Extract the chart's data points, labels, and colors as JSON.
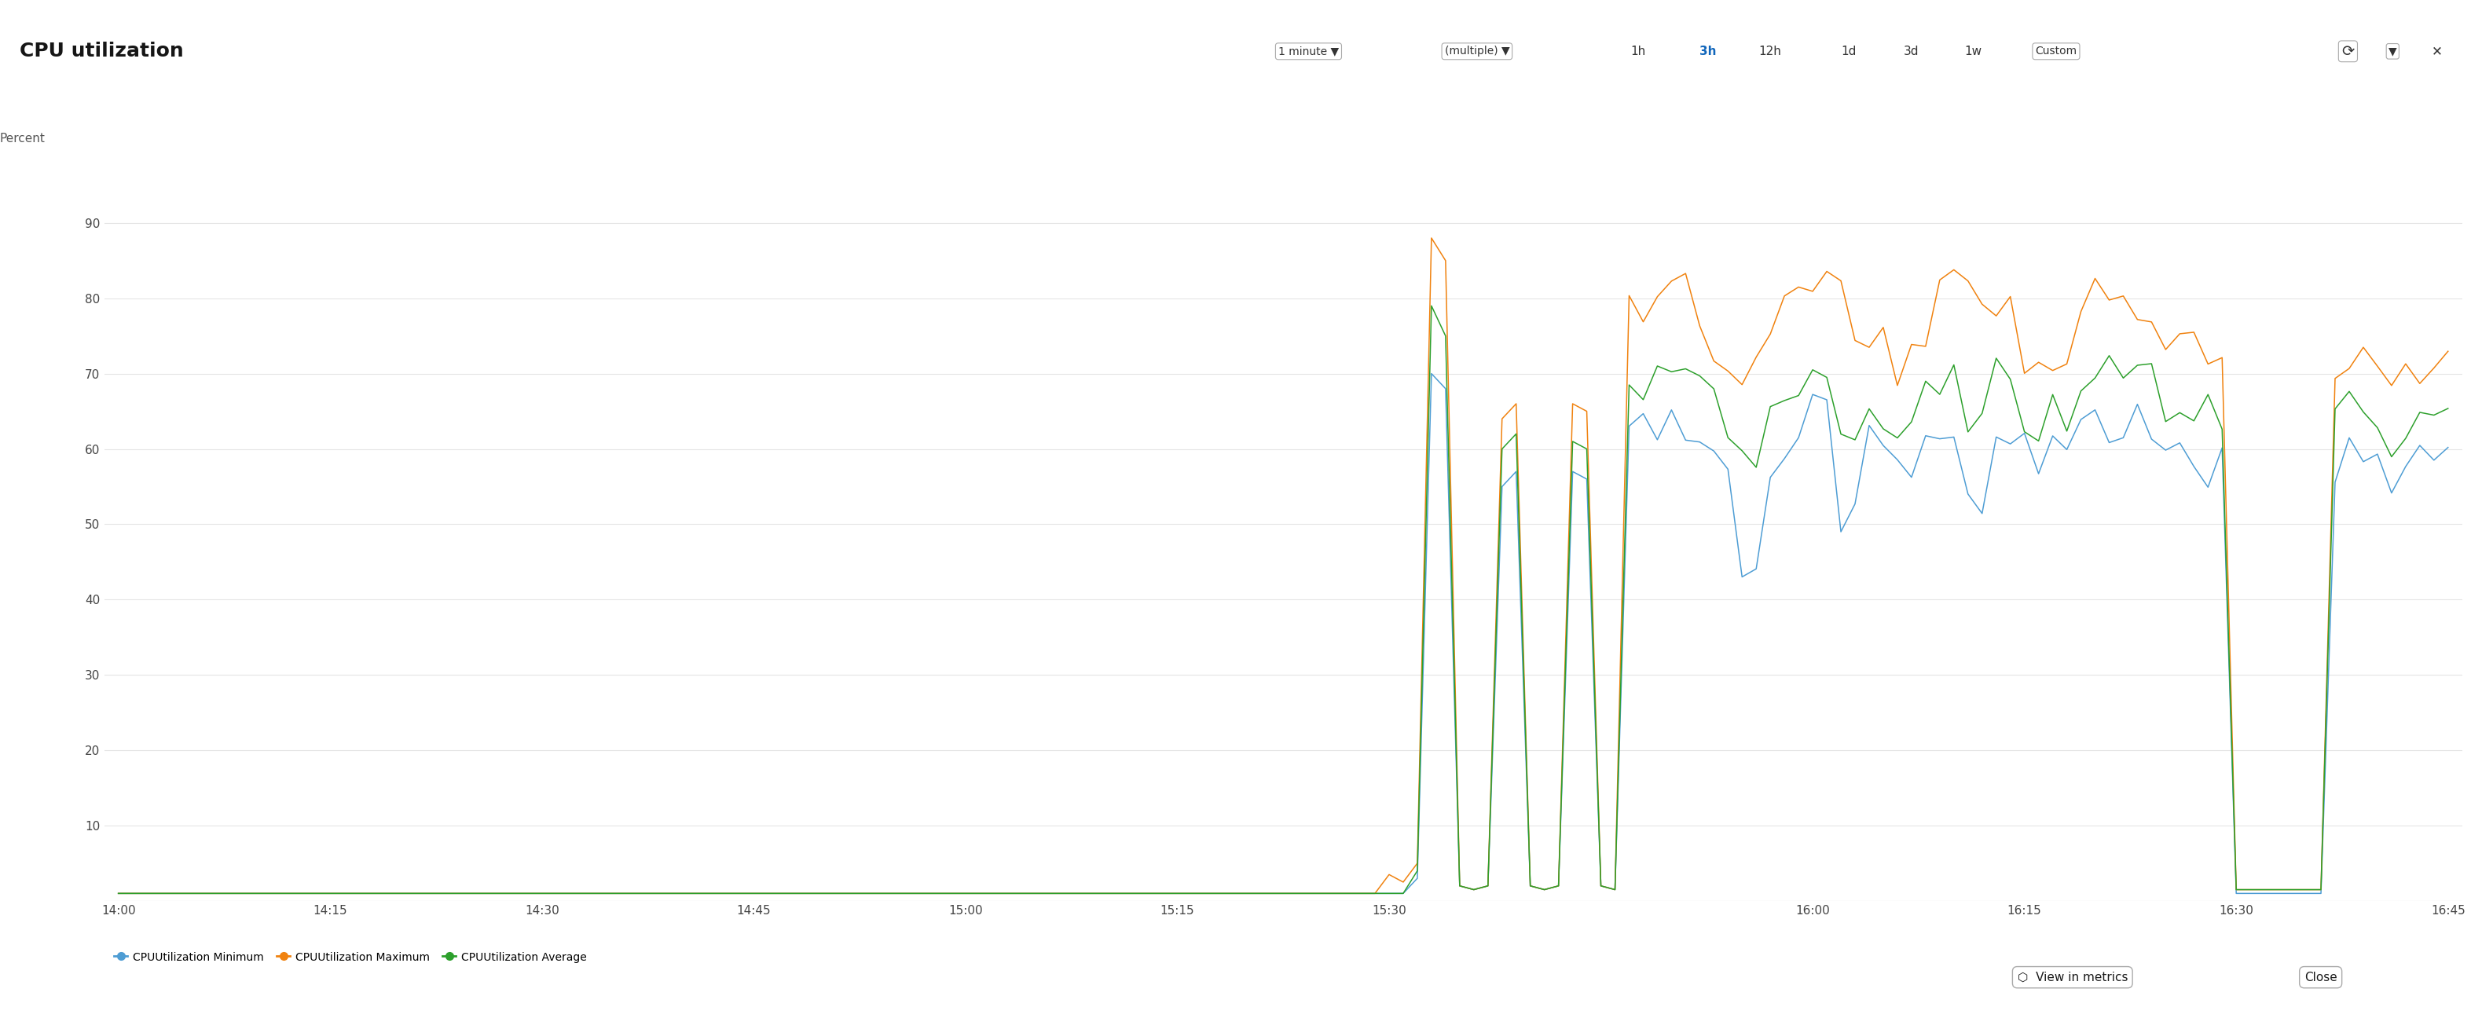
{
  "title": "CPU utilization",
  "ylabel": "Percent",
  "ylim": [
    0,
    100
  ],
  "yticks": [
    10,
    20,
    30,
    40,
    50,
    60,
    70,
    80,
    90
  ],
  "xtick_labels": [
    "14:00",
    "14:15",
    "14:30",
    "14:45",
    "15:00",
    "15:15",
    "15:30",
    "16:00",
    "16:15",
    "16:30",
    "16:45"
  ],
  "xtick_positions": [
    0,
    15,
    30,
    45,
    60,
    75,
    90,
    120,
    135,
    150,
    165
  ],
  "color_min": "#4e9dd4",
  "color_max": "#f0820f",
  "color_avg": "#2da02c",
  "legend_labels": [
    "CPUUtilization Minimum",
    "CPUUtilization Maximum",
    "CPUUtilization Average"
  ],
  "bg_color": "#ffffff",
  "header_bg": "#f8f8f8",
  "grid_color": "#e5e5e5",
  "title_fontsize": 18,
  "axis_fontsize": 11,
  "tick_fontsize": 11
}
